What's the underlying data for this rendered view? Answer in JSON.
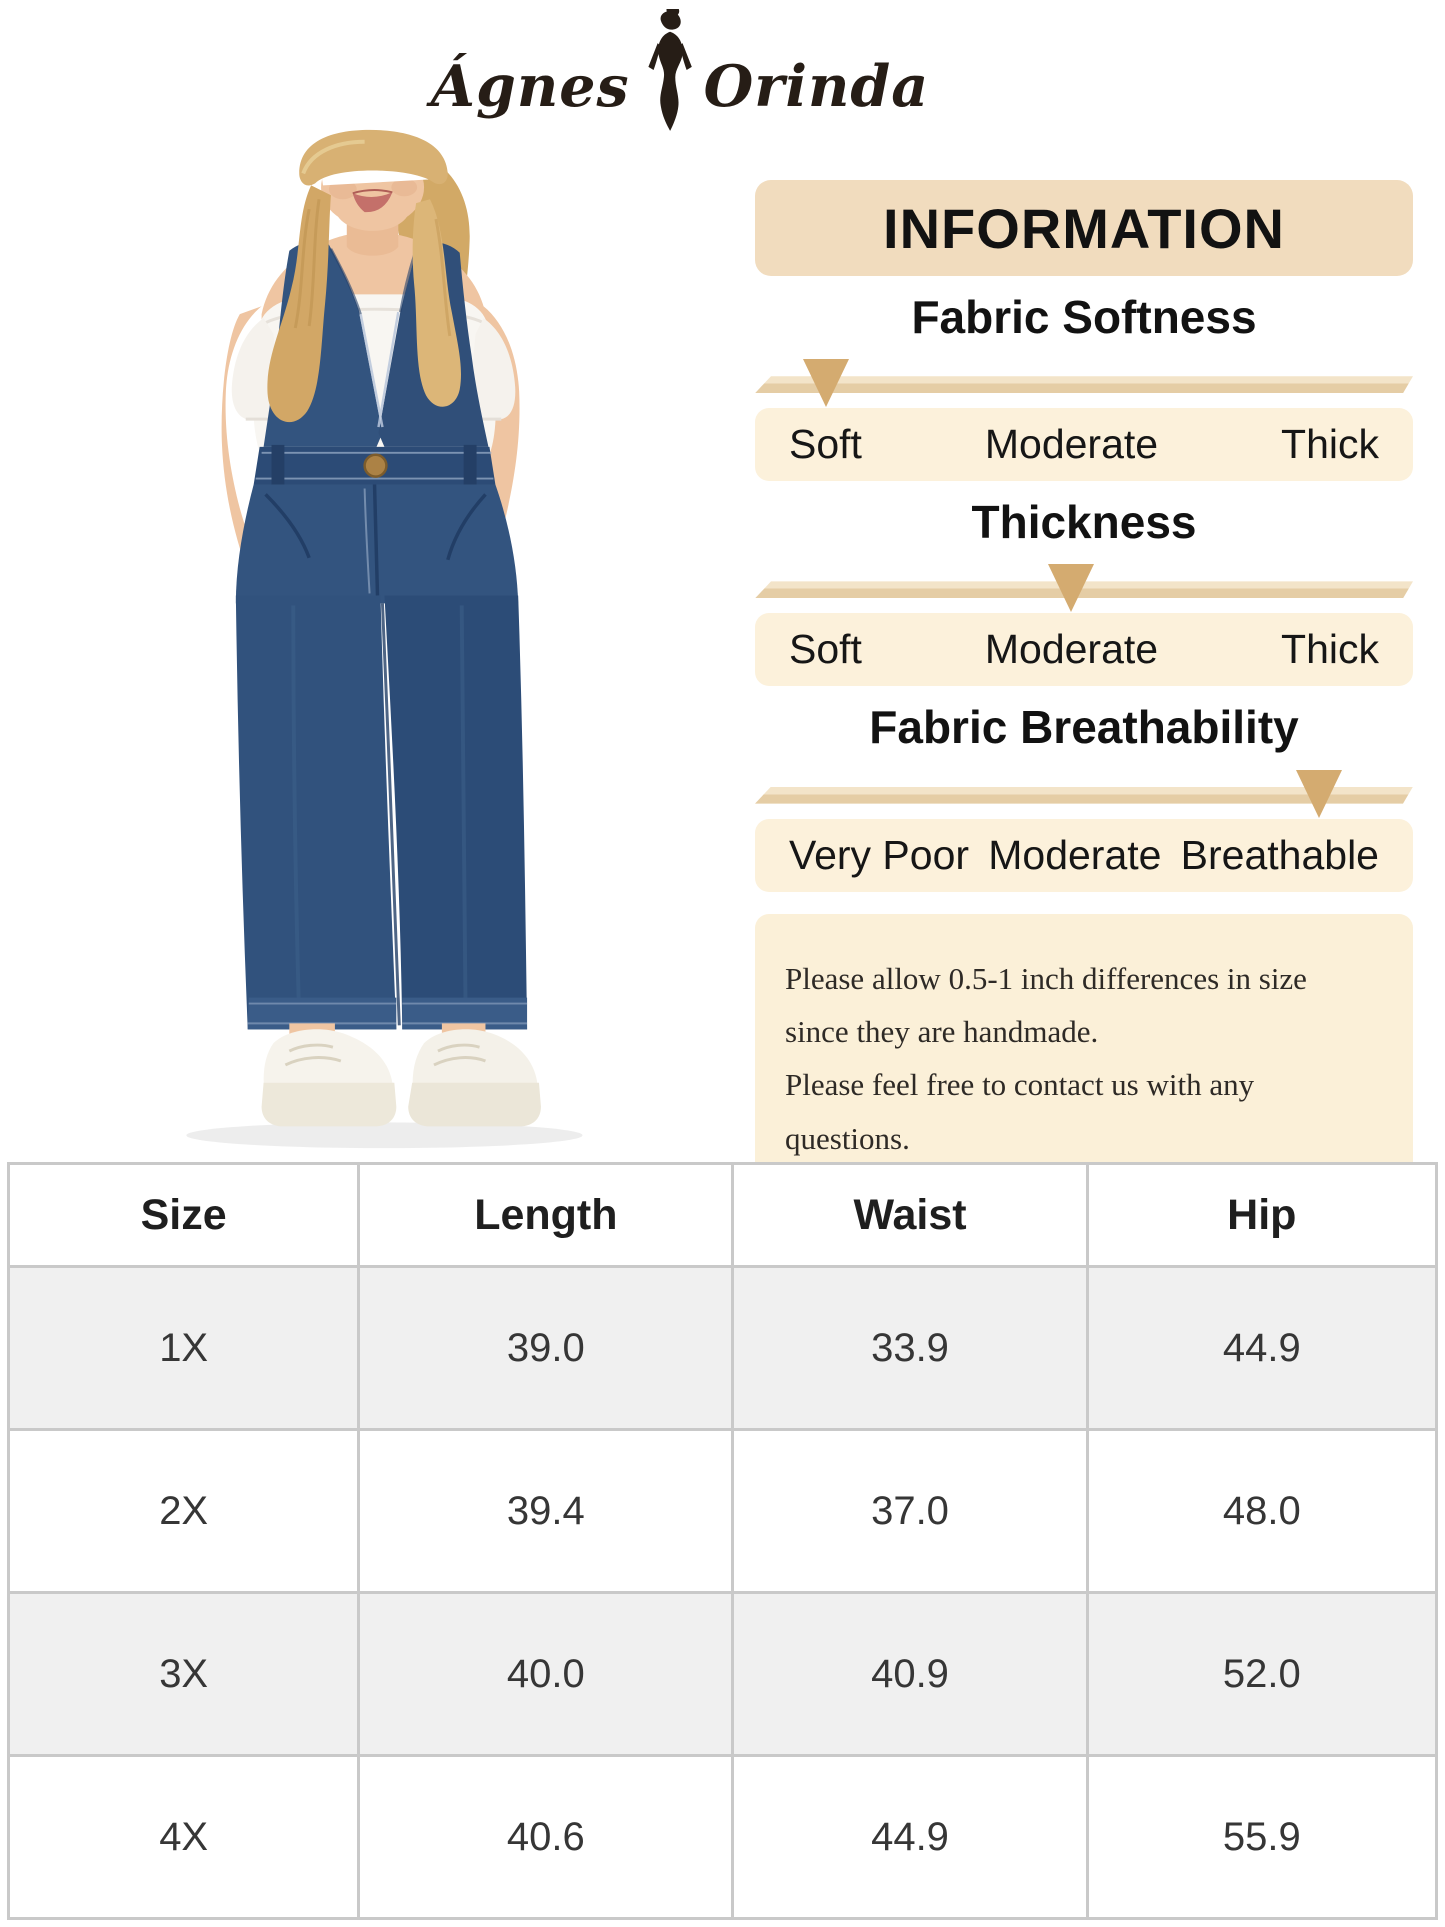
{
  "brand": {
    "name_left": "Ágnes",
    "name_right": "Orinda",
    "logo_icon": "woman-silhouette-icon"
  },
  "info_panel": {
    "title": "INFORMATION",
    "sections": [
      {
        "heading": "Fabric Softness",
        "labels": [
          "Soft",
          "Moderate",
          "Thick"
        ],
        "selected": "Soft",
        "marker_percent": 10.8
      },
      {
        "heading": "Thickness",
        "labels": [
          "Soft",
          "Moderate",
          "Thick"
        ],
        "selected": "Moderate",
        "marker_percent": 48
      },
      {
        "heading": "Fabric Breathability",
        "labels": [
          "Very Poor",
          "Moderate",
          "Breathable"
        ],
        "selected": "Breathable",
        "marker_percent": 85.7
      }
    ],
    "note_lines": [
      "Please allow 0.5-1 inch differences in size",
      "since they are handmade.",
      "Please feel free to contact us with any questions."
    ]
  },
  "size_table": {
    "headers": [
      "Size",
      "Length",
      "Waist",
      "Hip"
    ],
    "rows": [
      [
        "1X",
        "39.0",
        "33.9",
        "44.9"
      ],
      [
        "2X",
        "39.4",
        "37.0",
        "48.0"
      ],
      [
        "3X",
        "40.0",
        "40.9",
        "52.0"
      ],
      [
        "4X",
        "40.6",
        "44.9",
        "55.9"
      ]
    ]
  },
  "colors": {
    "panel_header_bg": "#F1DCBE",
    "label_row_bg": "#FCF1DB",
    "note_bg": "#FBF0D8",
    "marker": "#D4AB70",
    "bar_light": "#F3E4C9",
    "bar_dark": "#E5CDA5",
    "table_alt_row_bg": "#F0F0F0",
    "table_border": "#C9C9C9",
    "denim_blue": "#33547F",
    "logo_ink": "#261D16"
  }
}
